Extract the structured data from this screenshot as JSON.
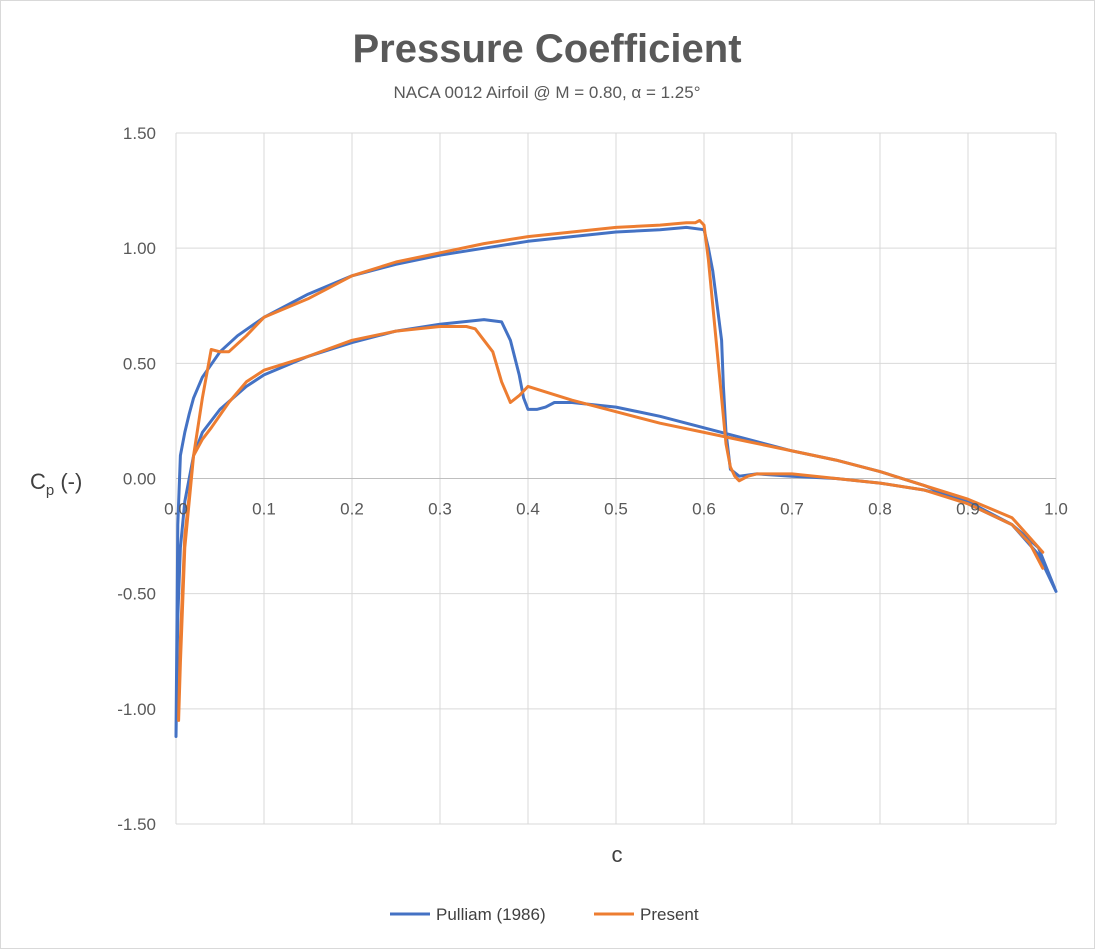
{
  "chart_data": {
    "type": "line",
    "title": "Pressure Coefficient",
    "subtitle": "NACA 0012 Airfoil @ M = 0.80, α = 1.25°",
    "xlabel": "c",
    "ylabel_main": "C",
    "ylabel_sub": "p",
    "ylabel_tail": " (-)",
    "xlim": [
      0,
      1
    ],
    "ylim": [
      -1.5,
      1.5
    ],
    "y_reversed": true,
    "grid": true,
    "legend_position": "bottom",
    "x_ticks": [
      "0.0",
      "0.1",
      "0.2",
      "0.3",
      "0.4",
      "0.5",
      "0.6",
      "0.7",
      "0.8",
      "0.9",
      "1.0"
    ],
    "y_ticks": [
      "1.50",
      "1.00",
      "0.50",
      "0.00",
      "-0.50",
      "-1.00",
      "-1.50"
    ],
    "series": [
      {
        "name": "Pulliam (1986)",
        "color": "#4472c4",
        "x": [
          1.0,
          0.98,
          0.95,
          0.9,
          0.85,
          0.8,
          0.75,
          0.7,
          0.66,
          0.64,
          0.63,
          0.625,
          0.622,
          0.62,
          0.615,
          0.61,
          0.605,
          0.6,
          0.58,
          0.55,
          0.5,
          0.45,
          0.4,
          0.35,
          0.3,
          0.25,
          0.2,
          0.15,
          0.1,
          0.07,
          0.05,
          0.03,
          0.02,
          0.015,
          0.01,
          0.005,
          0.002,
          0.0,
          0.002,
          0.005,
          0.01,
          0.02,
          0.03,
          0.05,
          0.08,
          0.1,
          0.15,
          0.2,
          0.25,
          0.3,
          0.35,
          0.37,
          0.38,
          0.39,
          0.395,
          0.4,
          0.41,
          0.42,
          0.43,
          0.45,
          0.5,
          0.55,
          0.6,
          0.65,
          0.7,
          0.75,
          0.8,
          0.85,
          0.9,
          0.95,
          0.98,
          1.0
        ],
        "y": [
          -0.49,
          -0.33,
          -0.2,
          -0.1,
          -0.05,
          -0.02,
          0.0,
          0.01,
          0.02,
          0.01,
          0.04,
          0.2,
          0.4,
          0.6,
          0.75,
          0.9,
          1.0,
          1.08,
          1.09,
          1.08,
          1.07,
          1.05,
          1.03,
          1.0,
          0.97,
          0.93,
          0.88,
          0.8,
          0.7,
          0.62,
          0.55,
          0.44,
          0.35,
          0.28,
          0.2,
          0.1,
          -0.2,
          -1.12,
          -0.6,
          -0.3,
          -0.1,
          0.1,
          0.2,
          0.3,
          0.4,
          0.45,
          0.53,
          0.59,
          0.64,
          0.67,
          0.69,
          0.68,
          0.6,
          0.45,
          0.35,
          0.3,
          0.3,
          0.31,
          0.33,
          0.33,
          0.31,
          0.27,
          0.22,
          0.17,
          0.12,
          0.08,
          0.03,
          -0.03,
          -0.11,
          -0.2,
          -0.3,
          -0.49
        ]
      },
      {
        "name": "Present",
        "color": "#ed7d31",
        "x": [
          0.985,
          0.97,
          0.95,
          0.9,
          0.85,
          0.8,
          0.75,
          0.7,
          0.68,
          0.66,
          0.65,
          0.64,
          0.635,
          0.63,
          0.625,
          0.62,
          0.615,
          0.61,
          0.605,
          0.6,
          0.595,
          0.59,
          0.58,
          0.55,
          0.5,
          0.45,
          0.4,
          0.35,
          0.3,
          0.25,
          0.2,
          0.15,
          0.1,
          0.08,
          0.06,
          0.05,
          0.04,
          0.03,
          0.02,
          0.01,
          0.005,
          0.003,
          0.005,
          0.01,
          0.02,
          0.03,
          0.04,
          0.06,
          0.08,
          0.1,
          0.15,
          0.2,
          0.25,
          0.3,
          0.33,
          0.34,
          0.36,
          0.37,
          0.38,
          0.39,
          0.4,
          0.45,
          0.5,
          0.55,
          0.6,
          0.65,
          0.7,
          0.75,
          0.8,
          0.85,
          0.9,
          0.95,
          0.985
        ],
        "y": [
          -0.39,
          -0.28,
          -0.2,
          -0.11,
          -0.05,
          -0.02,
          0.0,
          0.02,
          0.02,
          0.02,
          0.01,
          -0.01,
          0.01,
          0.05,
          0.15,
          0.35,
          0.55,
          0.75,
          0.95,
          1.1,
          1.12,
          1.11,
          1.11,
          1.1,
          1.09,
          1.07,
          1.05,
          1.02,
          0.98,
          0.94,
          0.88,
          0.78,
          0.7,
          0.62,
          0.55,
          0.55,
          0.56,
          0.35,
          0.1,
          -0.3,
          -0.8,
          -1.05,
          -0.7,
          -0.25,
          0.1,
          0.17,
          0.22,
          0.33,
          0.42,
          0.47,
          0.53,
          0.6,
          0.64,
          0.66,
          0.66,
          0.65,
          0.55,
          0.42,
          0.33,
          0.36,
          0.4,
          0.34,
          0.29,
          0.24,
          0.2,
          0.16,
          0.12,
          0.08,
          0.03,
          -0.03,
          -0.09,
          -0.17,
          -0.32
        ]
      }
    ]
  }
}
